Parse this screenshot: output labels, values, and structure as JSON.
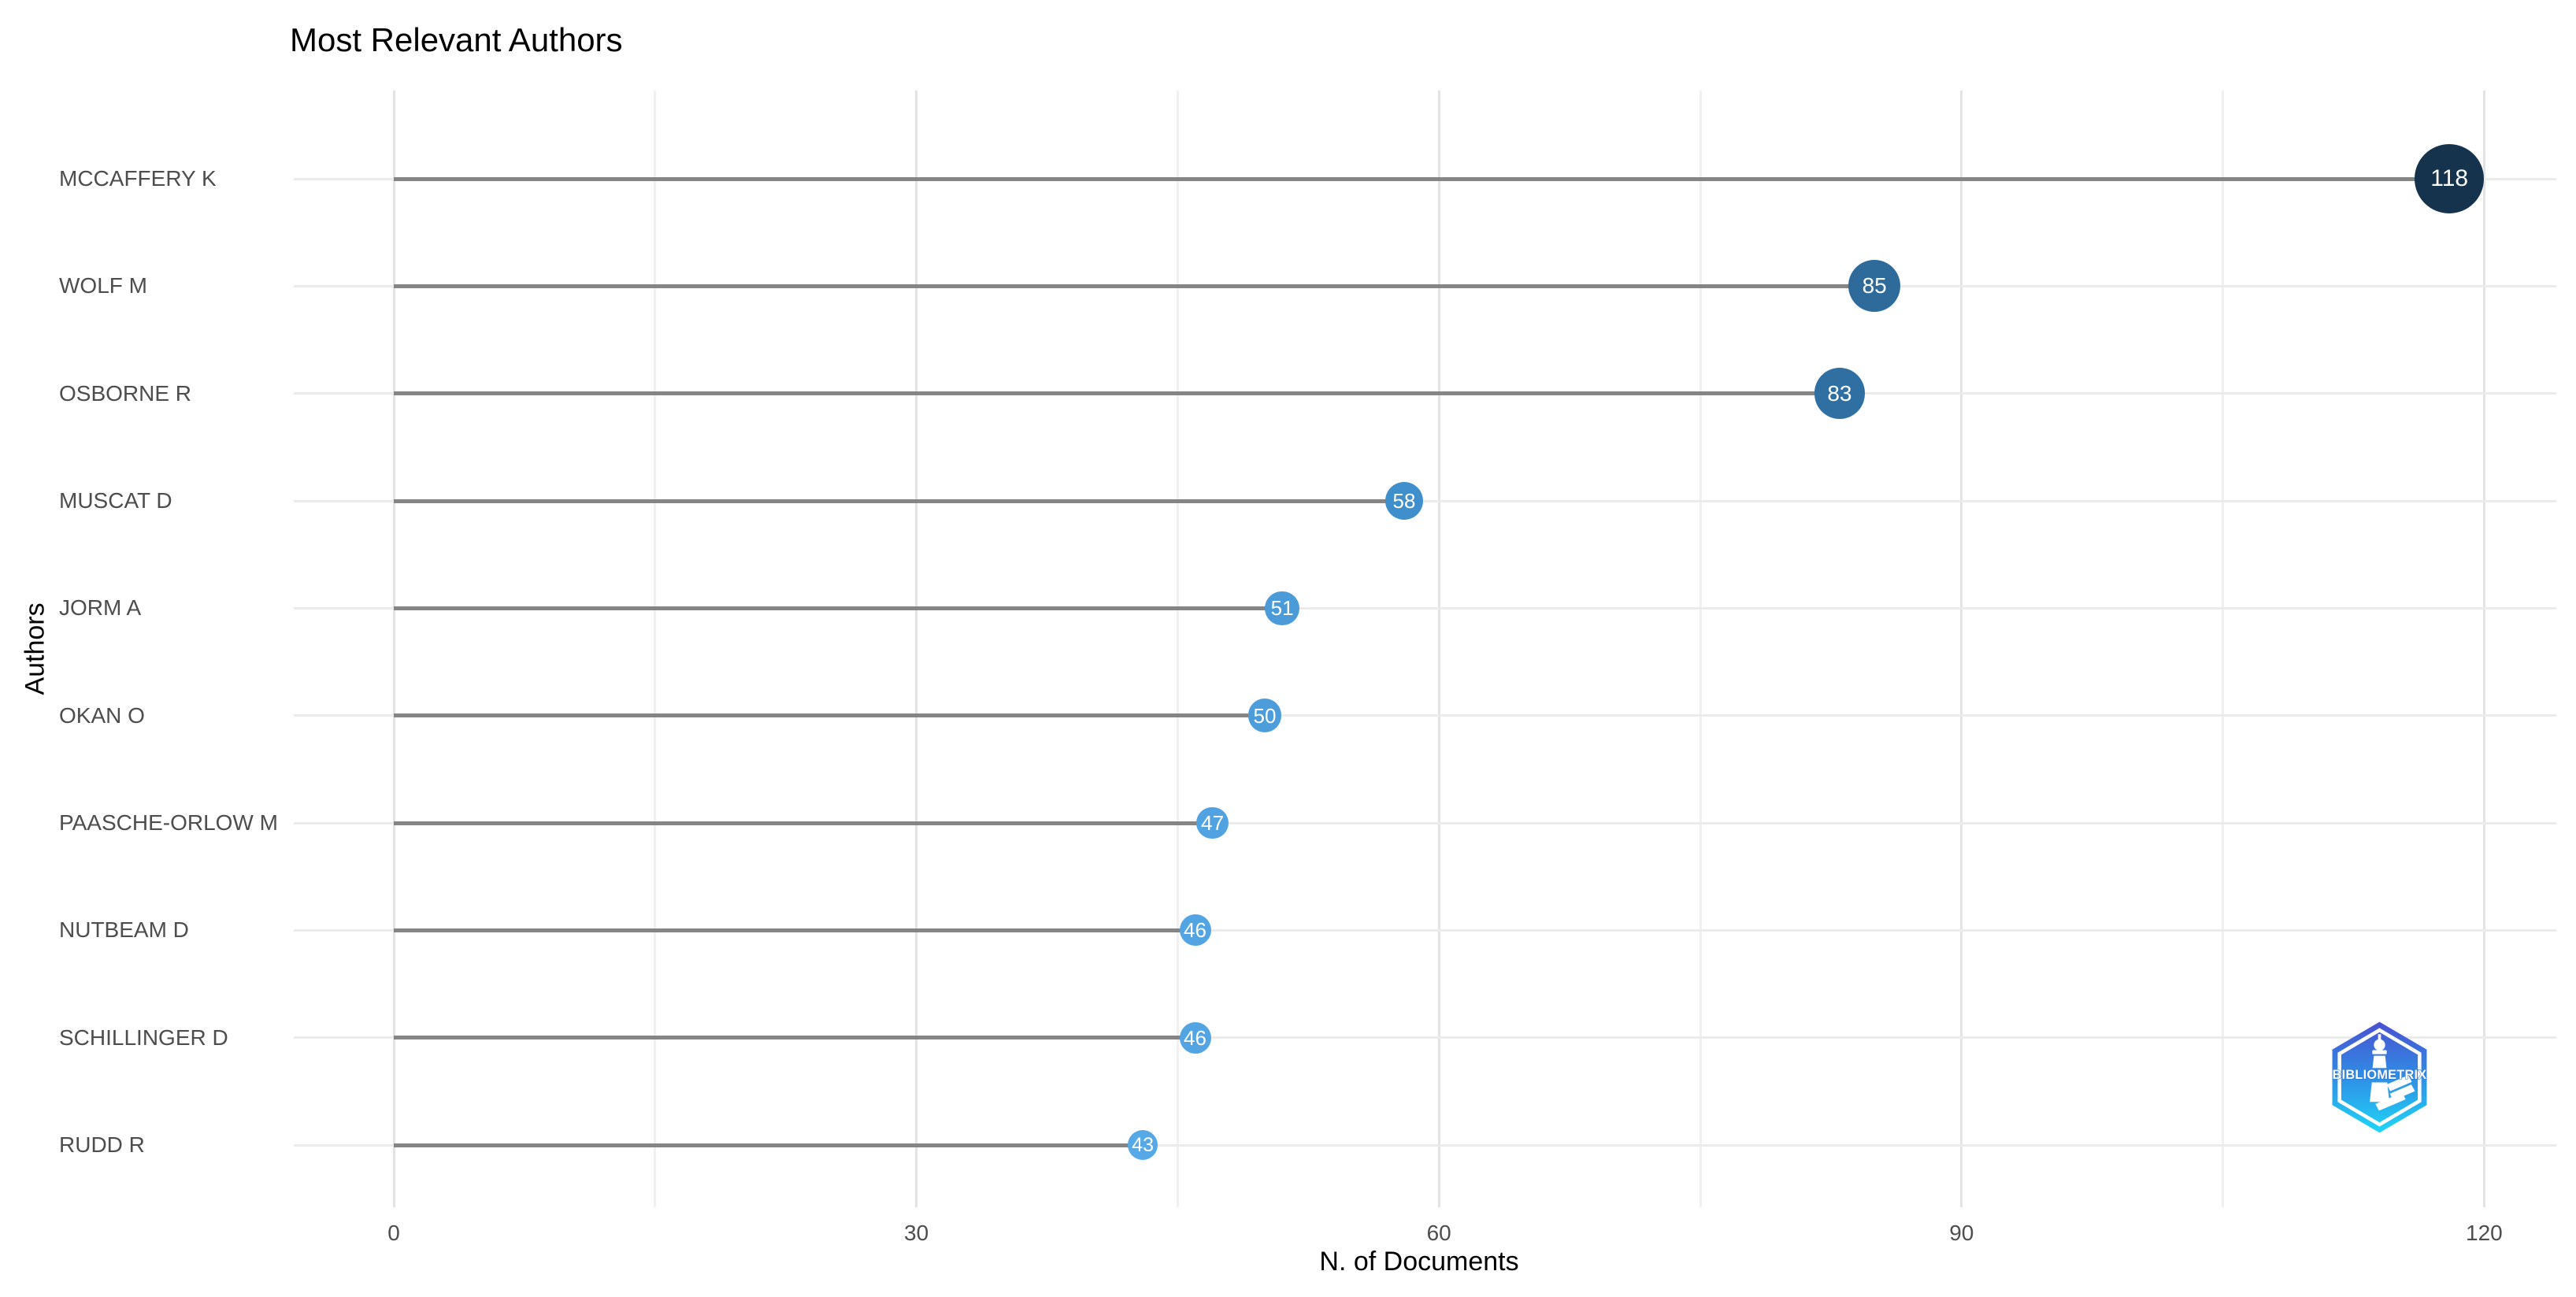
{
  "chart_data": {
    "type": "bar",
    "variant": "horizontal-lollipop",
    "title": "Most Relevant Authors",
    "xlabel": "N. of Documents",
    "ylabel": "Authors",
    "categories": [
      "MCCAFFERY K",
      "WOLF M",
      "OSBORNE R",
      "MUSCAT D",
      "JORM A",
      "OKAN O",
      "PAASCHE-ORLOW M",
      "NUTBEAM D",
      "SCHILLINGER D",
      "RUDD R"
    ],
    "values": [
      118,
      85,
      83,
      58,
      51,
      50,
      47,
      46,
      46,
      43
    ],
    "point_colors": [
      "#16334d",
      "#2e6b9b",
      "#2f6fa2",
      "#3f8fcd",
      "#4a9bd8",
      "#4c9dda",
      "#51a2e0",
      "#53a4e2",
      "#53a4e2",
      "#56a8e6"
    ],
    "xlim": [
      0,
      124
    ],
    "x_major_ticks": [
      0,
      30,
      60,
      90,
      120
    ],
    "x_minor_ticks": [
      15,
      45,
      75,
      105
    ],
    "grid": "vertical major+minor gridlines, horizontal category lines, no axis lines, no tick marks",
    "legend": "none",
    "colors": {
      "background": "#ffffff",
      "stem": "#858585",
      "grid_major": "#e3e3e3",
      "grid_minor": "#f0f0f0",
      "row_line": "#ebebeb",
      "tick_label": "#4d4d4d",
      "value_label": "#ffffff",
      "title": "#000000"
    }
  },
  "watermark": {
    "label": "BIBLIOMETRIX",
    "emblem": "hexagon-lighthouse-badge",
    "hex_top": "#4a50d0",
    "hex_mid": "#2f8ee5",
    "hex_bottom": "#1fd6f7"
  }
}
